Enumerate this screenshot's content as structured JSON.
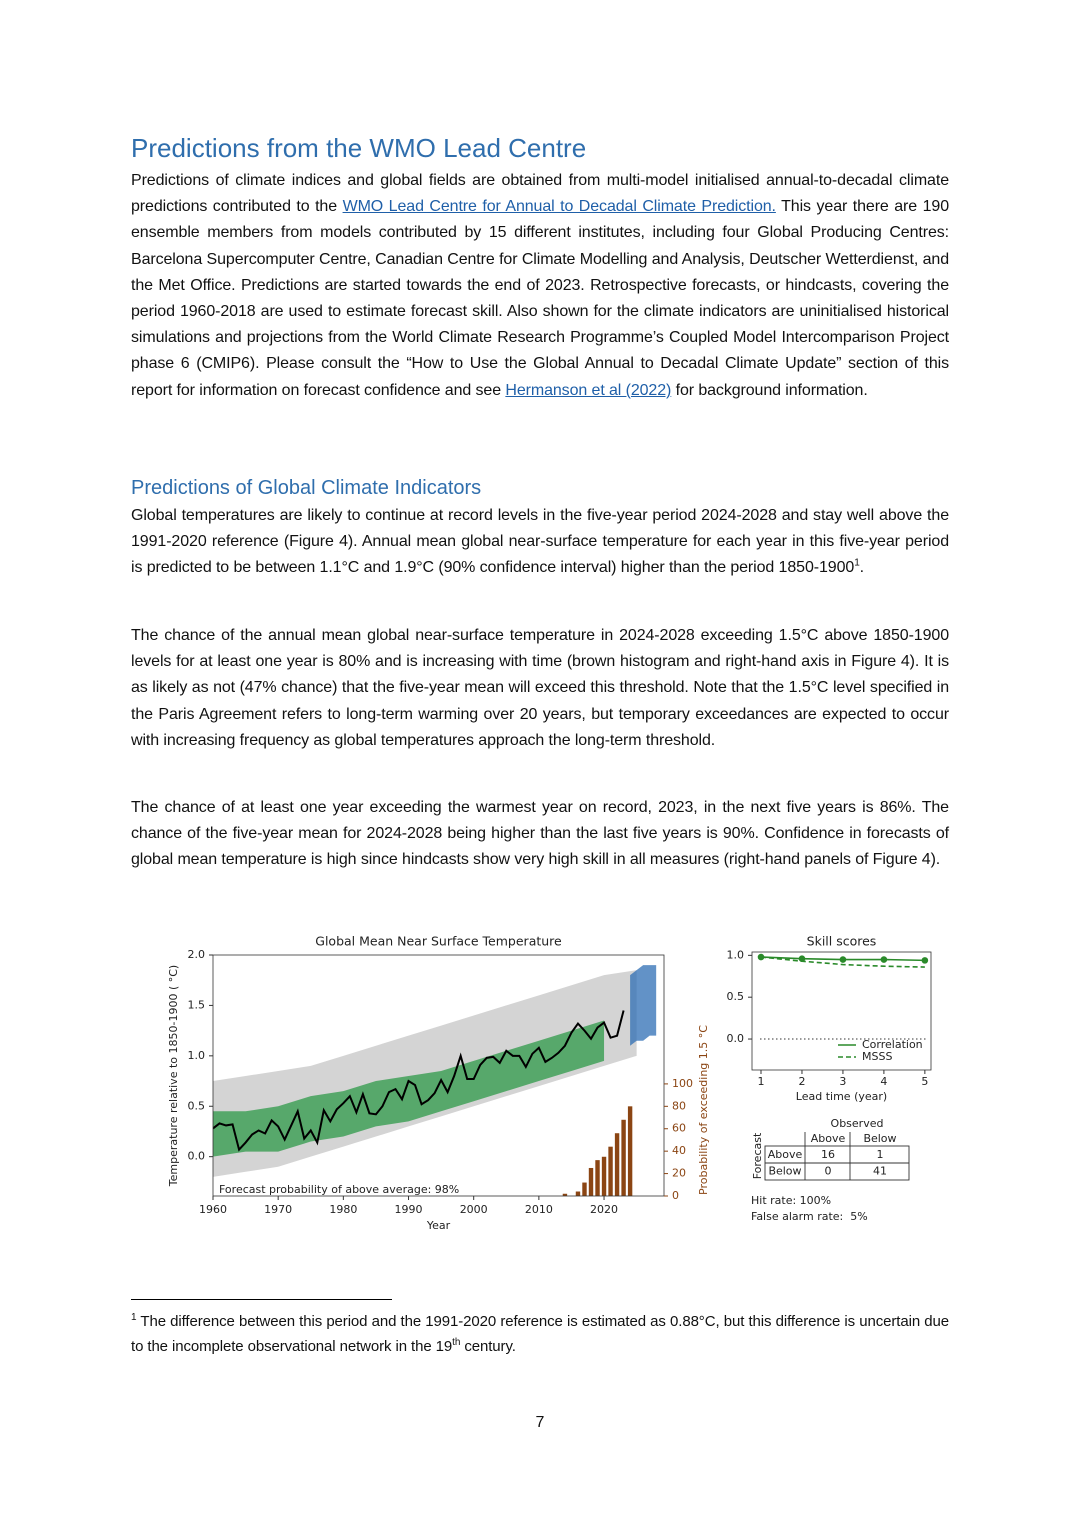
{
  "heading": "Predictions from the WMO Lead Centre",
  "paragraph_1": [
    {
      "text": "Predictions of climate indices and global fields are obtained from multi-model initialised annual-to-decadal climate predictions contributed to the "
    },
    {
      "text": "WMO Lead Centre for Annual to Decadal Climate Prediction.",
      "link": true
    },
    {
      "text": " This year there are 190 ensemble members from models contributed by 15 different institutes, including four Global Producing Centres: Barcelona Supercomputer Centre, Canadian Centre for Climate Modelling and Analysis, Deutscher Wetterdienst, and the Met Office. Predictions are started towards the end of 2023. Retrospective forecasts, or hindcasts, covering the period 1960-2018 are used to estimate forecast skill. Also shown for the climate indicators are uninitialised historical simulations and projections from the World Climate Research Programme’s Coupled Model Intercomparison Project phase 6 (CMIP6). Please consult the “How to Use the Global Annual to Decadal Climate Update” section of this report for information on forecast confidence and see "
    },
    {
      "text": "Hermanson et al (2022)",
      "link": true
    },
    {
      "text": " for background information."
    }
  ],
  "subheading": "Predictions of Global Climate Indicators",
  "paragraph_2": [
    {
      "text": "Global temperatures are likely to continue at record levels in the five-year period 2024-2028 and stay well above the 1991-2020 reference (Figure 4). Annual mean global near-surface temperature for each year in this five-year period is predicted to be between 1.1°C and 1.9°C (90% confidence interval) higher than the period 1850-1900"
    },
    {
      "text": "1",
      "sup": true
    },
    {
      "text": "."
    }
  ],
  "paragraph_3": [
    {
      "text": "The chance of the annual mean global near-surface temperature in 2024-2028 exceeding 1.5°C above 1850-1900 levels for at least one year is 80% and is increasing with time (brown histogram and right-hand axis in Figure 4). It is as likely as not (47% chance) that the five-year mean will exceed this threshold. Note that the 1.5°C level specified in the Paris Agreement refers to long-term warming over 20 years, but temporary exceedances are expected to occur with increasing frequency as global temperatures approach the long-term threshold."
    }
  ],
  "paragraph_4": [
    {
      "text": "The chance of at least one year exceeding the warmest year on record, 2023, in the next five years is 86%. The chance of the five-year mean for 2024-2028 being higher than the last five years is 90%. Confidence in forecasts of global mean temperature is high since hindcasts show very high skill in all measures (right-hand panels of Figure 4)."
    }
  ],
  "chart_data": [
    {
      "type": "line",
      "title": "Global Mean Near Surface Temperature",
      "xlabel": "Year",
      "ylabel": "Temperature relative to 1850-1900 ( °C)",
      "y2label": "Probability of exceeding 1.5 °C",
      "y2color": "#8b4513",
      "annotation": "Forecast probability of above average: 98%",
      "xlim": [
        1960,
        2029.2
      ],
      "xticks": [
        1960,
        1970,
        1980,
        1990,
        2000,
        2010,
        2020
      ],
      "ylim": [
        -0.39,
        2.0
      ],
      "yticks": [
        {
          "value": 0,
          "label": "0.0"
        },
        {
          "value": 0.5,
          "label": "0.5"
        },
        {
          "value": 1,
          "label": "1.0"
        },
        {
          "value": 1.5,
          "label": "1.5"
        },
        {
          "value": 2,
          "label": "2.0"
        }
      ],
      "y2lim": [
        0,
        215
      ],
      "y2ticks": [
        0,
        20,
        40,
        60,
        80,
        100
      ],
      "bands": [
        {
          "color": "#d4d4d4",
          "x": [
            1960,
            1965,
            1970,
            1975,
            1980,
            1985,
            1990,
            1995,
            2000,
            2005,
            2010,
            2015,
            2020,
            2025
          ],
          "lower": [
            -0.2,
            -0.15,
            -0.1,
            0.0,
            0.1,
            0.2,
            0.3,
            0.4,
            0.5,
            0.6,
            0.7,
            0.8,
            0.9,
            1.0
          ],
          "upper": [
            0.75,
            0.8,
            0.85,
            0.9,
            1.0,
            1.1,
            1.2,
            1.3,
            1.4,
            1.5,
            1.6,
            1.7,
            1.8,
            1.85
          ]
        },
        {
          "color": "#2e9a48",
          "x": [
            1960,
            1965,
            1970,
            1975,
            1980,
            1985,
            1990,
            1995,
            2000,
            2005,
            2010,
            2015,
            2020
          ],
          "lower": [
            0.0,
            0.05,
            0.05,
            0.15,
            0.2,
            0.3,
            0.35,
            0.45,
            0.55,
            0.65,
            0.75,
            0.85,
            0.95
          ],
          "upper": [
            0.45,
            0.45,
            0.5,
            0.6,
            0.65,
            0.75,
            0.8,
            0.85,
            0.95,
            1.05,
            1.15,
            1.25,
            1.35
          ]
        },
        {
          "color": "#2e6db4",
          "x": [
            2024,
            2025,
            2026,
            2027,
            2028
          ],
          "lower": [
            1.1,
            1.15,
            1.15,
            1.2,
            1.2
          ],
          "upper": [
            1.8,
            1.85,
            1.9,
            1.9,
            1.9
          ]
        }
      ],
      "series": [
        {
          "color": "#000000",
          "x": [
            1960,
            1961,
            1962,
            1963,
            1964,
            1965,
            1966,
            1967,
            1968,
            1969,
            1970,
            1971,
            1972,
            1973,
            1974,
            1975,
            1976,
            1977,
            1978,
            1979,
            1980,
            1981,
            1982,
            1983,
            1984,
            1985,
            1986,
            1987,
            1988,
            1989,
            1990,
            1991,
            1992,
            1993,
            1994,
            1995,
            1996,
            1997,
            1998,
            1999,
            2000,
            2001,
            2002,
            2003,
            2004,
            2005,
            2006,
            2007,
            2008,
            2009,
            2010,
            2011,
            2012,
            2013,
            2014,
            2015,
            2016,
            2017,
            2018,
            2019,
            2020,
            2021,
            2022,
            2023
          ],
          "values": [
            0.28,
            0.33,
            0.31,
            0.32,
            0.07,
            0.14,
            0.22,
            0.26,
            0.23,
            0.36,
            0.3,
            0.17,
            0.31,
            0.45,
            0.18,
            0.26,
            0.14,
            0.46,
            0.35,
            0.47,
            0.53,
            0.6,
            0.44,
            0.62,
            0.43,
            0.42,
            0.5,
            0.64,
            0.67,
            0.57,
            0.75,
            0.71,
            0.52,
            0.56,
            0.63,
            0.76,
            0.64,
            0.8,
            1.0,
            0.77,
            0.77,
            0.91,
            0.98,
            0.99,
            0.93,
            1.05,
            1.0,
            1.0,
            0.89,
            1.02,
            1.08,
            0.94,
            0.98,
            1.03,
            1.1,
            1.23,
            1.32,
            1.25,
            1.17,
            1.28,
            1.33,
            1.18,
            1.2,
            1.45
          ]
        },
        {
          "type": "bar",
          "axis": "y2",
          "color": "#8b4513",
          "x": [
            2014,
            2016,
            2017,
            2018,
            2019,
            2020,
            2021,
            2022,
            2023,
            2024
          ],
          "values": [
            2,
            4,
            12,
            25,
            32,
            35,
            44,
            56,
            68,
            80
          ]
        }
      ]
    },
    {
      "type": "line",
      "title": "Skill scores",
      "xlabel": "Lead time (year)",
      "x": [
        1,
        2,
        3,
        4,
        5
      ],
      "xlim": [
        0.78,
        5.15
      ],
      "xticks": [
        1,
        2,
        3,
        4,
        5
      ],
      "ylim": [
        -0.37,
        1.04
      ],
      "yticks": [
        {
          "value": 0,
          "label": "0.0"
        },
        {
          "value": 0.5,
          "label": "0.5"
        },
        {
          "value": 1,
          "label": "1.0"
        }
      ],
      "reference_line": 0,
      "series": [
        {
          "name": "Correlation",
          "color": "#2a8a2a",
          "dash": false,
          "values": [
            0.98,
            0.96,
            0.95,
            0.95,
            0.94
          ]
        },
        {
          "name": "MSSS",
          "color": "#2a8a2a",
          "dash": true,
          "values": [
            0.98,
            0.93,
            0.89,
            0.87,
            0.86
          ]
        }
      ]
    }
  ],
  "contingency_table": {
    "title": "Observed",
    "row_header": "Forecast",
    "columns": [
      "Above",
      "Below"
    ],
    "rows": [
      {
        "label": "Above",
        "cells": [
          "16",
          "1"
        ]
      },
      {
        "label": "Below",
        "cells": [
          "0",
          "41"
        ]
      }
    ]
  },
  "scores": [
    "Hit rate: 100%",
    "False alarm rate:  5%"
  ],
  "footnote": [
    {
      "text": "1",
      "sup": true
    },
    {
      "text": " The difference between this period and the 1991-2020 reference is estimated as 0.88°C, but this difference is uncertain due to the incomplete observational network in the 19"
    },
    {
      "text": "th",
      "sup": true
    },
    {
      "text": " century."
    }
  ],
  "page_number": "7"
}
